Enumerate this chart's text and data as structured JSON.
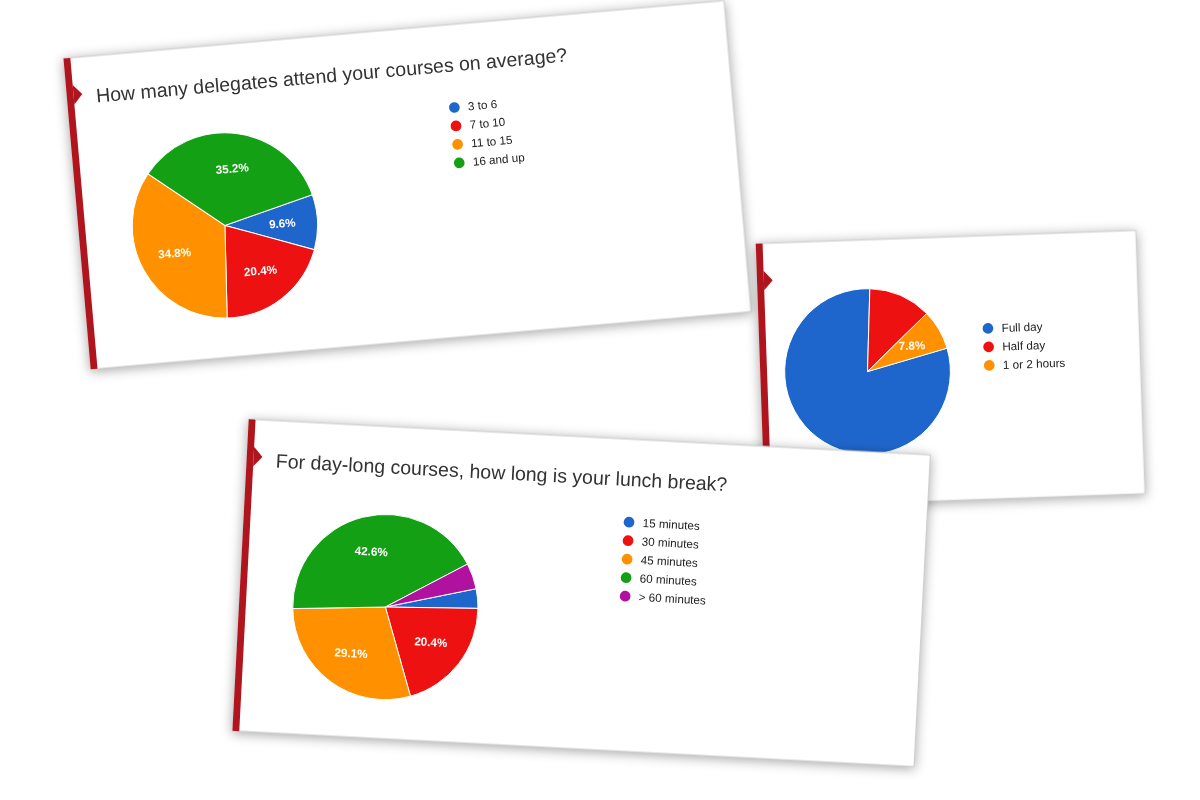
{
  "chart_data": [
    {
      "type": "pie",
      "title": "How many delegates attend your courses on average?",
      "categories": [
        "3 to 6",
        "7 to 10",
        "11 to 15",
        "16 and up"
      ],
      "values": [
        9.6,
        20.4,
        34.8,
        35.2
      ],
      "colors": [
        "#1f66cc",
        "#ee1111",
        "#ff9100",
        "#14a014"
      ],
      "value_labels": [
        "9.6%",
        "20.4%",
        "34.8%",
        "35.2%"
      ],
      "legend": "right"
    },
    {
      "type": "pie",
      "categories": [
        "Full day",
        "Half day",
        "1 or 2 hours"
      ],
      "values": [
        80,
        12.2,
        7.8
      ],
      "colors": [
        "#1f66cc",
        "#ee1111",
        "#ff9100"
      ],
      "value_labels": [
        null,
        null,
        "7.8%"
      ],
      "legend": "right"
    },
    {
      "type": "pie",
      "title": "For day-long courses, how long is your lunch break?",
      "categories": [
        "15 minutes",
        "30 minutes",
        "45 minutes",
        "60 minutes",
        "> 60 minutes"
      ],
      "values": [
        3.4,
        20.4,
        29.1,
        42.6,
        4.5
      ],
      "colors": [
        "#1f66cc",
        "#ee1111",
        "#ff9100",
        "#14a014",
        "#b0119f"
      ],
      "value_labels": [
        null,
        "20.4%",
        "29.1%",
        "42.6%",
        null
      ],
      "legend": "right"
    }
  ]
}
